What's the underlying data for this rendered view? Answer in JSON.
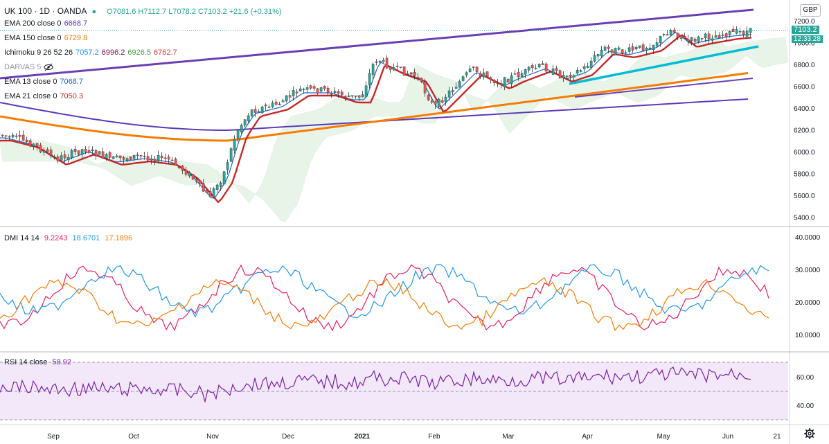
{
  "symbol": {
    "name": "UK 100 · 1D · OANDA",
    "ohlc": "O7081.6 H7112.7 L7078.2 C7103.2 +21.6 (+0.31%)"
  },
  "indicators": [
    {
      "label": "EMA 200 close 0",
      "values": [
        "6668.7"
      ],
      "colors": [
        "#5b3ab8"
      ]
    },
    {
      "label": "EMA 150 close 0",
      "values": [
        "6729.8"
      ],
      "colors": [
        "#f57c00"
      ]
    },
    {
      "label": "Ichimoku 9 26 52 26",
      "values": [
        "7057.2",
        "6996.2",
        "6926.5",
        "6762.7"
      ],
      "colors": [
        "#2196f3",
        "#880e4f",
        "#43a047",
        "#e53935"
      ]
    },
    {
      "label": "DARVAS 5",
      "values": [],
      "colors": [],
      "hidden": true
    },
    {
      "label": "EMA 13 close 0",
      "values": [
        "7068.7"
      ],
      "colors": [
        "#1e63c6"
      ]
    },
    {
      "label": "EMA 21 close 0",
      "values": [
        "7050.3"
      ],
      "colors": [
        "#c62828"
      ]
    }
  ],
  "dmi": {
    "label": "DMI 14 14",
    "values": [
      "9.2243",
      "18.6701",
      "17.1896"
    ],
    "colors": [
      "#e91e63",
      "#2196f3",
      "#f57c00"
    ]
  },
  "rsi": {
    "label": "RSI 14 close",
    "values": [
      "58.92"
    ],
    "colors": [
      "#7b1fa2"
    ]
  },
  "currency": "GBP",
  "last_price": "7103.2",
  "countdown": "12:33:28",
  "price_axis": [
    "7200.0",
    "7000.0",
    "6800.0",
    "6600.0",
    "6400.0",
    "6200.0",
    "6000.0",
    "5800.0",
    "5600.0",
    "5400.0"
  ],
  "dmi_axis": [
    "40.0000",
    "30.0000",
    "20.0000",
    "10.0000"
  ],
  "rsi_axis": [
    "60.00",
    "40.00"
  ],
  "time_axis": [
    "Sep",
    "Oct",
    "Nov",
    "Dec",
    "2021",
    "Feb",
    "Mar",
    "Apr",
    "May",
    "Jun",
    "21"
  ],
  "colors": {
    "up": "#26a69a",
    "down": "#ef5350",
    "ema200": "#5b3ab8",
    "ema150": "#f57c00",
    "trend": "#00bcd4",
    "channel": "#6a3fb5",
    "rsi_band": "#e9d8f5"
  }
}
